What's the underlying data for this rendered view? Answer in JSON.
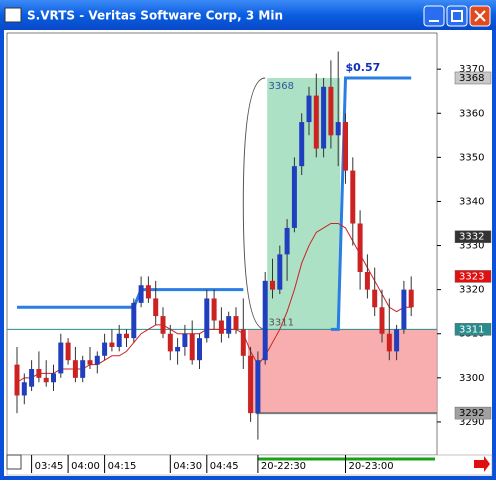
{
  "window": {
    "title": "S.VRTS - Veritas Software Corp, 3 Min"
  },
  "chart_data": {
    "type": "candlestick",
    "categories": [
      null,
      null,
      "03:45",
      null,
      null,
      null,
      null,
      "04:00",
      null,
      null,
      null,
      null,
      "04:15",
      null,
      null,
      null,
      null,
      null,
      null,
      null,
      null,
      "04:30",
      null,
      null,
      null,
      null,
      "04:45",
      null,
      null,
      null,
      null,
      null,
      null,
      "20-22:30",
      null,
      null,
      null,
      null,
      null,
      null,
      null,
      null,
      null,
      null,
      null,
      "20-23:00",
      null,
      null,
      null,
      null,
      null,
      null,
      null,
      null,
      null
    ],
    "open": [
      3303,
      3296,
      3298,
      3302,
      3300,
      3299,
      3301,
      3308,
      3304,
      3300,
      3304,
      3303,
      3305,
      3308,
      3307,
      3310,
      3309,
      3317,
      3321,
      3318,
      3314,
      3310,
      3306,
      3307,
      3310,
      3304,
      3309,
      3318,
      3313,
      3310,
      3314,
      3311,
      3305,
      3292,
      3304,
      3322,
      3320,
      3328,
      3334,
      3348,
      3358,
      3364,
      3352,
      3366,
      3355,
      3358,
      3347,
      3335,
      3324,
      3320,
      3316,
      3310,
      3306,
      3311,
      3320
    ],
    "high": [
      3307,
      3301,
      3304,
      3306,
      3304,
      3303,
      3310,
      3309,
      3307,
      3305,
      3307,
      3306,
      3310,
      3311,
      3312,
      3311,
      3318,
      3323,
      3323,
      3322,
      3316,
      3312,
      3309,
      3312,
      3313,
      3310,
      3320,
      3320,
      3316,
      3315,
      3316,
      3318,
      3307,
      3306,
      3324,
      3327,
      3330,
      3336,
      3350,
      3360,
      3366,
      3369,
      3368,
      3372,
      3374,
      3360,
      3350,
      3338,
      3328,
      3325,
      3320,
      3318,
      3312,
      3322,
      3323
    ],
    "low": [
      3292,
      3294,
      3297,
      3299,
      3298,
      3297,
      3300,
      3303,
      3299,
      3299,
      3302,
      3301,
      3304,
      3306,
      3306,
      3307,
      3308,
      3316,
      3317,
      3312,
      3309,
      3304,
      3303,
      3305,
      3303,
      3302,
      3308,
      3311,
      3308,
      3309,
      3310,
      3302,
      3290,
      3286,
      3303,
      3318,
      3319,
      3322,
      3333,
      3346,
      3355,
      3350,
      3350,
      3352,
      3348,
      3344,
      3330,
      3320,
      3318,
      3314,
      3308,
      3304,
      3304,
      3310,
      3314
    ],
    "close": [
      3296,
      3299,
      3302,
      3300,
      3299,
      3301,
      3308,
      3304,
      3300,
      3304,
      3303,
      3305,
      3308,
      3307,
      3310,
      3309,
      3317,
      3321,
      3318,
      3314,
      3310,
      3306,
      3307,
      3310,
      3304,
      3309,
      3318,
      3313,
      3310,
      3314,
      3311,
      3305,
      3292,
      3304,
      3322,
      3320,
      3328,
      3334,
      3348,
      3358,
      3364,
      3352,
      3366,
      3355,
      3358,
      3347,
      3335,
      3324,
      3320,
      3316,
      3310,
      3306,
      3311,
      3320,
      3316
    ],
    "up_color": "#1f3fbf",
    "down_color": "#cc2222",
    "series": [
      {
        "color": "#2a7de1",
        "values": [
          3316,
          3316,
          3316,
          3316,
          3316,
          3316,
          3316,
          3316,
          3316,
          3316,
          3316,
          3316,
          3316,
          3316,
          3316,
          3316,
          3316,
          3320,
          3320,
          3320,
          3320,
          3320,
          3320,
          3320,
          3320,
          3320,
          3320,
          3320,
          3320,
          3320,
          3320,
          3320,
          null,
          null,
          null,
          null,
          null,
          null,
          null,
          null,
          null,
          null,
          null,
          3311,
          3311,
          3368,
          3368,
          3368,
          3368,
          3368,
          3368,
          3368,
          3368,
          3368,
          3368
        ]
      },
      {
        "color": "#cc2222",
        "values": [
          3299,
          3300,
          3300,
          3301,
          3301,
          3301,
          3302,
          3302,
          3302,
          3302,
          3303,
          3303,
          3304,
          3305,
          3305,
          3306,
          3308,
          3310,
          3311,
          3312,
          3312,
          3311,
          3310,
          3310,
          3310,
          3310,
          3311,
          3311,
          3311,
          3311,
          3311,
          3310,
          3306,
          3303,
          3305,
          3308,
          3311,
          3315,
          3320,
          3326,
          3330,
          3333,
          3334,
          3335,
          3335,
          3334,
          3331,
          3328,
          3325,
          3322,
          3319,
          3316,
          3315,
          3316,
          3316
        ]
      }
    ],
    "zones": [
      {
        "low": 3311,
        "high": 3368,
        "color": "#9fdcbc"
      },
      {
        "low": 3292,
        "high": 3311,
        "color": "#f7a0a0"
      }
    ],
    "annotation": "$0.57",
    "markers": [
      {
        "value": 3368,
        "color": "#c8c8c8",
        "text_color": "#000000"
      },
      {
        "value": 3332,
        "color": "#333333",
        "text_color": "#ffffff"
      },
      {
        "value": 3323,
        "color": "#e01010",
        "text_color": "#ffffff"
      },
      {
        "value": 3311,
        "color": "#2a8c8c",
        "text_color": "#ffffff"
      },
      {
        "value": 3292,
        "color": "#a0a0a0",
        "text_color": "#000000"
      }
    ],
    "ylim": [
      3282.5,
      3378.2
    ],
    "yticks": [
      3290,
      3300,
      3310,
      3320,
      3330,
      3340,
      3350,
      3360,
      3370
    ]
  }
}
